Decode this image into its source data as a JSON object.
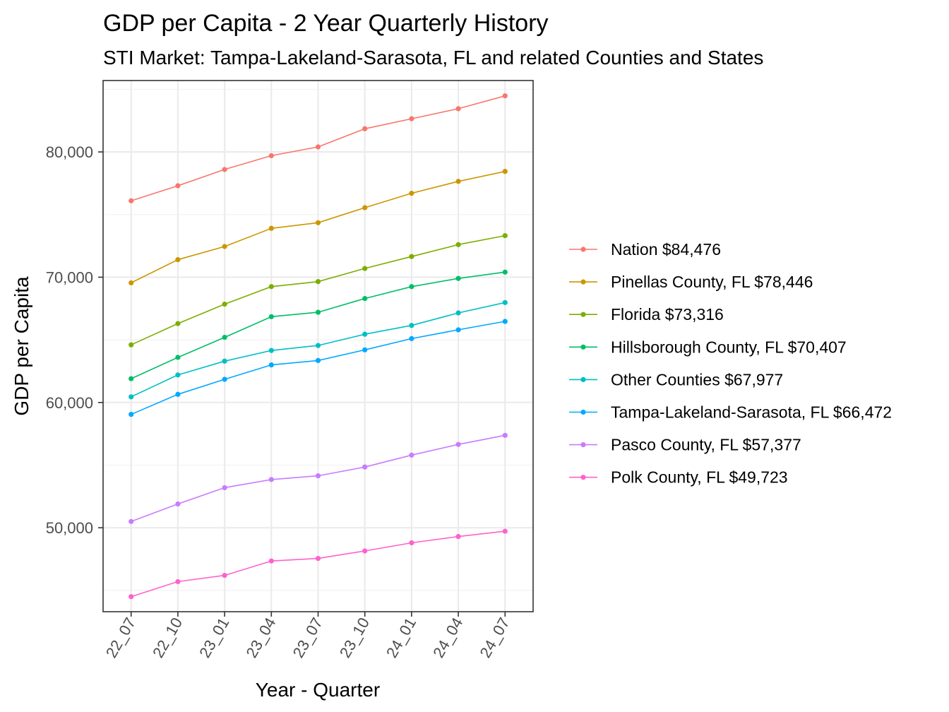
{
  "chart_data": {
    "type": "line",
    "title": "GDP per Capita - 2 Year Quarterly History",
    "subtitle": "STI Market: Tampa-Lakeland-Sarasota, FL and related Counties and States",
    "xlabel": "Year - Quarter",
    "ylabel": "GDP per Capita",
    "categories": [
      "22_07",
      "22_10",
      "23_01",
      "23_04",
      "23_07",
      "23_10",
      "24_01",
      "24_04",
      "24_07"
    ],
    "ylim": [
      43300,
      85700
    ],
    "yticks": [
      50000,
      60000,
      70000,
      80000
    ],
    "ytick_labels": [
      "50,000",
      "60,000",
      "70,000",
      "80,000"
    ],
    "grid": true,
    "legend_position": "right",
    "series": [
      {
        "name": "Nation $84,476",
        "color": "#F8766D",
        "values": [
          76100,
          77300,
          78600,
          79700,
          80400,
          81850,
          82650,
          83450,
          84476
        ]
      },
      {
        "name": "Pinellas County, FL $78,446",
        "color": "#CD9600",
        "values": [
          69550,
          71400,
          72450,
          73900,
          74350,
          75550,
          76700,
          77650,
          78446
        ]
      },
      {
        "name": "Florida $73,316",
        "color": "#7CAE00",
        "values": [
          64600,
          66300,
          67850,
          69250,
          69650,
          70700,
          71650,
          72600,
          73316
        ]
      },
      {
        "name": "Hillsborough County, FL $70,407",
        "color": "#00BE67",
        "values": [
          61900,
          63600,
          65200,
          66850,
          67200,
          68300,
          69250,
          69900,
          70407
        ]
      },
      {
        "name": "Other Counties $67,977",
        "color": "#00BFC4",
        "values": [
          60450,
          62200,
          63300,
          64150,
          64550,
          65450,
          66150,
          67150,
          67977
        ]
      },
      {
        "name": "Tampa-Lakeland-Sarasota, FL $66,472",
        "color": "#00A9FF",
        "values": [
          59050,
          60650,
          61850,
          63000,
          63350,
          64200,
          65100,
          65800,
          66472
        ]
      },
      {
        "name": "Pasco County, FL $57,377",
        "color": "#C77CFF",
        "values": [
          50500,
          51900,
          53200,
          53850,
          54150,
          54850,
          55800,
          56650,
          57377
        ]
      },
      {
        "name": "Polk County, FL $49,723",
        "color": "#FF61CC",
        "values": [
          44500,
          45700,
          46200,
          47350,
          47550,
          48150,
          48800,
          49300,
          49723
        ]
      }
    ]
  }
}
